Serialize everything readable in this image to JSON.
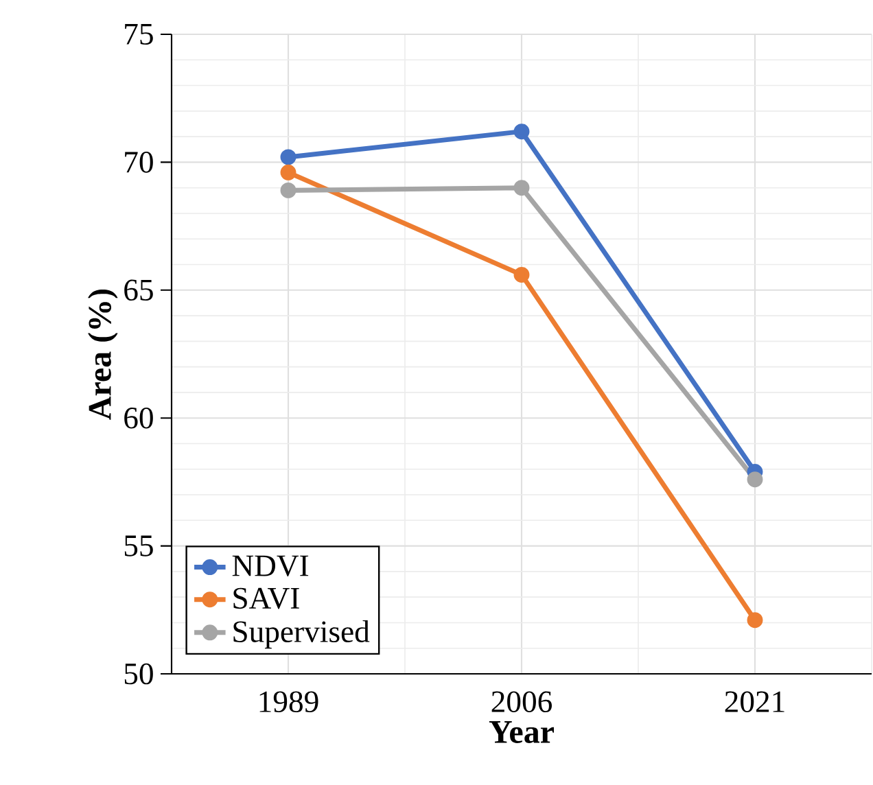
{
  "chart_data": {
    "type": "line",
    "xlabel": "Year",
    "ylabel": "Area (%)",
    "categories": [
      "1989",
      "2006",
      "2021"
    ],
    "series": [
      {
        "name": "NDVI",
        "color": "#4472c4",
        "values": [
          70.2,
          71.2,
          57.9
        ]
      },
      {
        "name": "SAVI",
        "color": "#ed7d31",
        "values": [
          69.6,
          65.6,
          52.1
        ]
      },
      {
        "name": "Supervised",
        "color": "#a5a5a5",
        "values": [
          68.9,
          69.0,
          57.6
        ]
      }
    ],
    "ylim": [
      50,
      75
    ],
    "yticks": [
      50,
      55,
      60,
      65,
      70,
      75
    ],
    "grid": true,
    "legend": "bottom left",
    "marker": "circle",
    "line_style": "solid"
  }
}
